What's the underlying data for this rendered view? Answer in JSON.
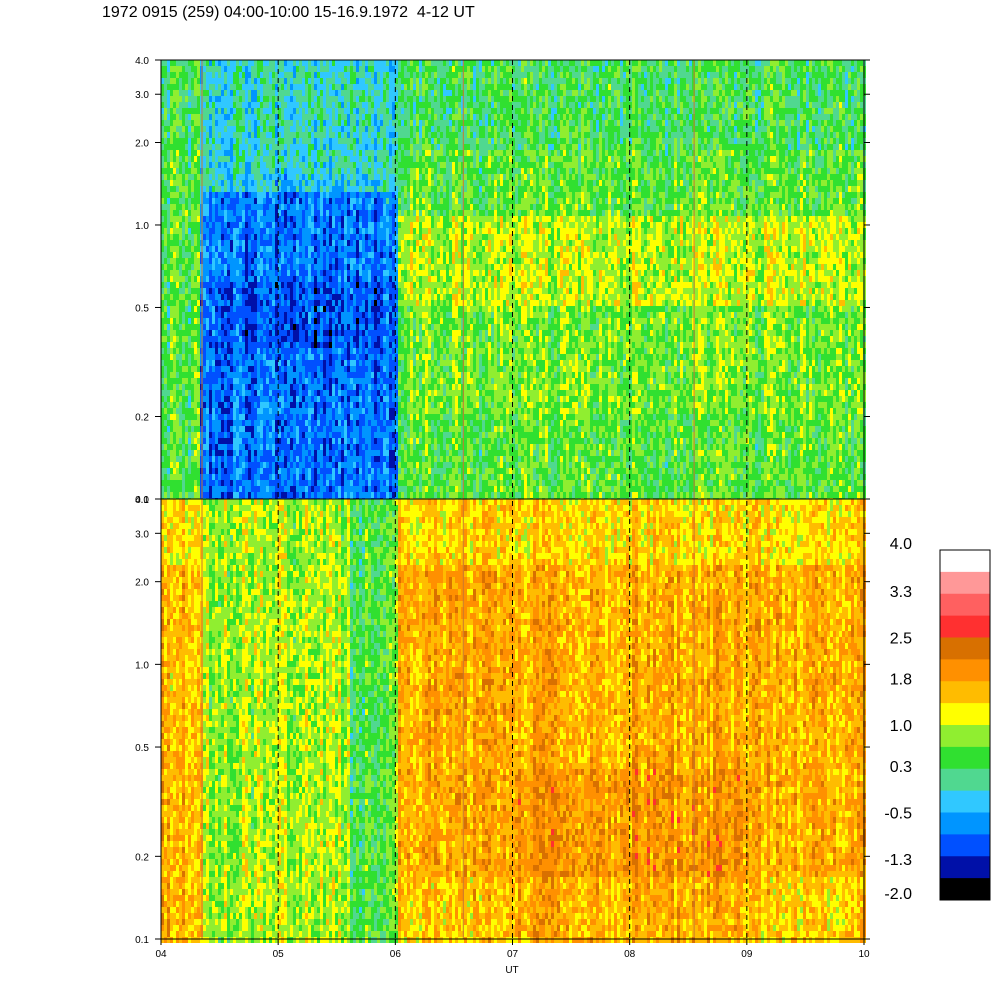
{
  "title": "1972 0915 (259) 04:00-10:00 15-16.9.1972  4-12 UT",
  "colors": {
    "scale": [
      "#000000",
      "#0010a8",
      "#0050ff",
      "#0095ff",
      "#30c8ff",
      "#50d890",
      "#30e030",
      "#90ee30",
      "#ffff00",
      "#ffbc00",
      "#ff9000",
      "#d87000",
      "#ff3030",
      "#ff6060",
      "#ff9898",
      "#ffffff"
    ],
    "dashed_line": "#000000",
    "vertical_streak": "#c87830"
  },
  "chart_data": [
    {
      "type": "heatmap",
      "panel": "top",
      "x": [
        "04",
        "05",
        "06",
        "07",
        "08",
        "09",
        "10"
      ],
      "xlim": [
        4,
        10
      ],
      "ylim": [
        0.1,
        4.0
      ],
      "yscale": "log",
      "yticks": [
        {
          "value": 0.1,
          "label": "0.1"
        },
        {
          "value": 0.2,
          "label": "0.2"
        },
        {
          "value": 0.5,
          "label": "0.5"
        },
        {
          "value": 1.0,
          "label": "1.0"
        },
        {
          "value": 2.0,
          "label": "2.0"
        },
        {
          "value": 3.0,
          "label": "3.0"
        },
        {
          "value": 4.0,
          "label": "4.0"
        }
      ],
      "dominant_level": "0.3 to 1.0 (green); -1.3 to -0.5 (blue) between 04:20 and 06:00"
    },
    {
      "type": "heatmap",
      "panel": "bottom",
      "x": [
        "04",
        "05",
        "06",
        "07",
        "08",
        "09",
        "10"
      ],
      "xlim": [
        4,
        10
      ],
      "ylim": [
        0.1,
        4.0
      ],
      "yscale": "log",
      "yticks": [
        {
          "value": 0.1,
          "label": "0.1"
        },
        {
          "value": 0.2,
          "label": "0.2"
        },
        {
          "value": 0.5,
          "label": "0.5"
        },
        {
          "value": 1.0,
          "label": "1.0"
        },
        {
          "value": 2.0,
          "label": "2.0"
        },
        {
          "value": 3.0,
          "label": "3.0"
        },
        {
          "value": 4.0,
          "label": "4.0"
        }
      ],
      "dominant_level": "1.0 to 2.5 (yellow-orange); 0.3 to 1.0 (green) between 04:30 and 06:00"
    }
  ],
  "xaxis": {
    "xlabel": "UT",
    "ticks": [
      "04",
      "05",
      "06",
      "07",
      "08",
      "09",
      "10"
    ],
    "dashed_lines_at": [
      5,
      6,
      7,
      8,
      9
    ]
  },
  "colorbar": {
    "labels": [
      "4.0",
      "3.3",
      "2.5",
      "1.8",
      "1.0",
      "0.3",
      "-0.5",
      "-1.3",
      "-2.0"
    ],
    "range": [
      -2.0,
      4.0
    ],
    "segments": 16
  }
}
